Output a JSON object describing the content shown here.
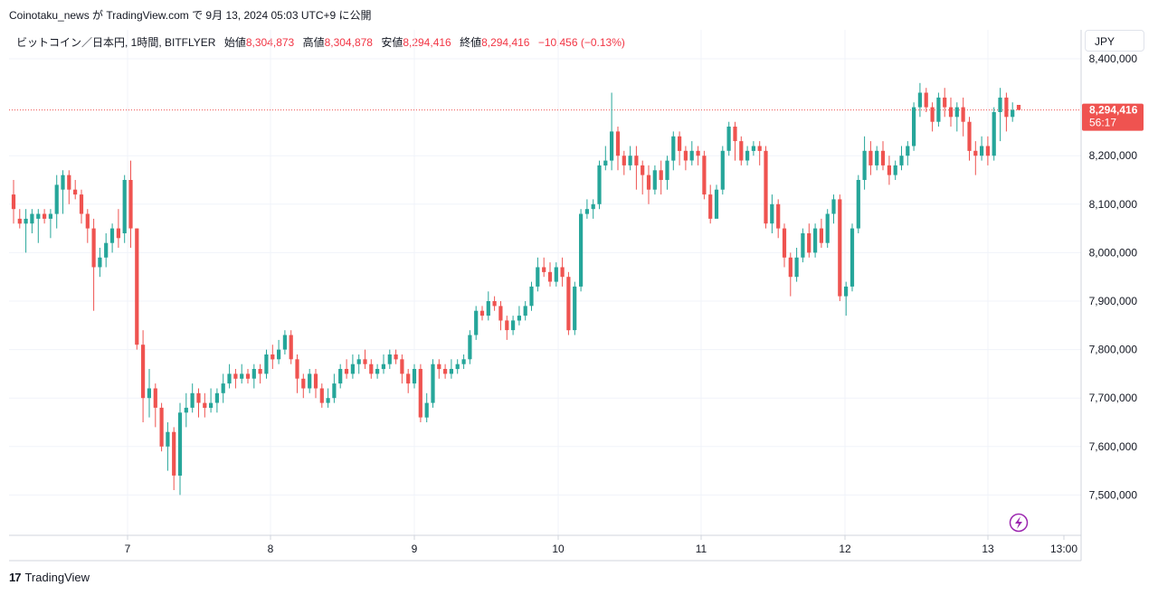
{
  "header": {
    "publish_line": "Coinotaku_news が TradingView.com で 9月 13, 2024 05:03 UTC+9 に公開"
  },
  "legend": {
    "symbol": "ビットコイン／日本円, 1時間, BITFLYER",
    "open_label": "始値",
    "open_value": "8,304,873",
    "high_label": "高値",
    "high_value": "8,304,878",
    "low_label": "安値",
    "low_value": "8,294,416",
    "close_label": "終値",
    "close_value": "8,294,416",
    "change": "−10,456 (−0.13%)"
  },
  "currency_button": "JPY",
  "price_label": {
    "price": "8,294,416",
    "countdown": "56:17"
  },
  "footer": {
    "brand": "TradingView",
    "logo_mark": "17"
  },
  "colors": {
    "up": "#26a69a",
    "down": "#ef5350",
    "grid": "#f0f3fa",
    "price_tag": "#ef5350",
    "axis_text": "#131722",
    "lightning": "#9c27b0"
  },
  "chart_data": {
    "type": "candlestick",
    "y_axis_labels": [
      "8,400,000",
      "8,200,000",
      "8,100,000",
      "8,000,000",
      "7,900,000",
      "7,800,000",
      "7,700,000",
      "7,600,000",
      "7,500,000"
    ],
    "x_axis_labels": [
      "7",
      "8",
      "9",
      "10",
      "11",
      "12",
      "13",
      "13:00"
    ],
    "last_price": 8294416,
    "candles": [
      [
        8120000,
        8090000,
        8150000,
        8060000
      ],
      [
        8070000,
        8060000,
        8090000,
        8050000
      ],
      [
        8060000,
        8070000,
        8090000,
        8000000
      ],
      [
        8060000,
        8080000,
        8090000,
        8040000
      ],
      [
        8070000,
        8080000,
        8090000,
        8020000
      ],
      [
        8080000,
        8070000,
        8090000,
        8060000
      ],
      [
        8070000,
        8080000,
        8090000,
        8030000
      ],
      [
        8080000,
        8140000,
        8160000,
        8050000
      ],
      [
        8130000,
        8160000,
        8170000,
        8080000
      ],
      [
        8160000,
        8130000,
        8170000,
        8100000
      ],
      [
        8130000,
        8120000,
        8150000,
        8110000
      ],
      [
        8120000,
        8080000,
        8130000,
        8060000
      ],
      [
        8080000,
        8050000,
        8090000,
        8020000
      ],
      [
        8050000,
        7970000,
        8070000,
        7880000
      ],
      [
        7970000,
        7990000,
        8010000,
        7950000
      ],
      [
        7990000,
        8020000,
        8040000,
        7970000
      ],
      [
        8020000,
        8050000,
        8060000,
        8000000
      ],
      [
        8050000,
        8030000,
        8090000,
        8010000
      ],
      [
        8040000,
        8150000,
        8160000,
        8020000
      ],
      [
        8150000,
        8050000,
        8190000,
        8010000
      ],
      [
        8050000,
        7810000,
        8050000,
        7800000
      ],
      [
        7810000,
        7700000,
        7840000,
        7650000
      ],
      [
        7700000,
        7720000,
        7760000,
        7660000
      ],
      [
        7720000,
        7680000,
        7730000,
        7640000
      ],
      [
        7680000,
        7600000,
        7690000,
        7590000
      ],
      [
        7600000,
        7630000,
        7650000,
        7550000
      ],
      [
        7630000,
        7540000,
        7640000,
        7510000
      ],
      [
        7540000,
        7670000,
        7690000,
        7500000
      ],
      [
        7670000,
        7680000,
        7710000,
        7640000
      ],
      [
        7680000,
        7710000,
        7730000,
        7670000
      ],
      [
        7710000,
        7690000,
        7720000,
        7660000
      ],
      [
        7690000,
        7680000,
        7710000,
        7660000
      ],
      [
        7680000,
        7690000,
        7720000,
        7670000
      ],
      [
        7690000,
        7710000,
        7720000,
        7670000
      ],
      [
        7710000,
        7730000,
        7750000,
        7690000
      ],
      [
        7730000,
        7750000,
        7770000,
        7720000
      ],
      [
        7750000,
        7740000,
        7760000,
        7720000
      ],
      [
        7740000,
        7750000,
        7770000,
        7730000
      ],
      [
        7750000,
        7740000,
        7760000,
        7730000
      ],
      [
        7740000,
        7760000,
        7770000,
        7720000
      ],
      [
        7760000,
        7750000,
        7770000,
        7730000
      ],
      [
        7750000,
        7790000,
        7800000,
        7740000
      ],
      [
        7790000,
        7780000,
        7810000,
        7760000
      ],
      [
        7780000,
        7800000,
        7820000,
        7770000
      ],
      [
        7800000,
        7830000,
        7840000,
        7790000
      ],
      [
        7830000,
        7780000,
        7840000,
        7770000
      ],
      [
        7780000,
        7740000,
        7790000,
        7710000
      ],
      [
        7740000,
        7720000,
        7750000,
        7700000
      ],
      [
        7720000,
        7750000,
        7760000,
        7710000
      ],
      [
        7750000,
        7720000,
        7760000,
        7700000
      ],
      [
        7720000,
        7690000,
        7730000,
        7680000
      ],
      [
        7690000,
        7700000,
        7720000,
        7680000
      ],
      [
        7700000,
        7730000,
        7750000,
        7690000
      ],
      [
        7730000,
        7760000,
        7770000,
        7720000
      ],
      [
        7760000,
        7750000,
        7780000,
        7740000
      ],
      [
        7750000,
        7770000,
        7790000,
        7740000
      ],
      [
        7770000,
        7780000,
        7790000,
        7750000
      ],
      [
        7780000,
        7770000,
        7800000,
        7760000
      ],
      [
        7770000,
        7750000,
        7780000,
        7740000
      ],
      [
        7750000,
        7760000,
        7770000,
        7740000
      ],
      [
        7760000,
        7770000,
        7790000,
        7750000
      ],
      [
        7770000,
        7790000,
        7800000,
        7760000
      ],
      [
        7790000,
        7780000,
        7800000,
        7770000
      ],
      [
        7780000,
        7750000,
        7790000,
        7730000
      ],
      [
        7750000,
        7730000,
        7760000,
        7710000
      ],
      [
        7730000,
        7760000,
        7770000,
        7720000
      ],
      [
        7760000,
        7660000,
        7770000,
        7650000
      ],
      [
        7660000,
        7690000,
        7710000,
        7650000
      ],
      [
        7690000,
        7770000,
        7780000,
        7680000
      ],
      [
        7770000,
        7760000,
        7780000,
        7740000
      ],
      [
        7760000,
        7750000,
        7770000,
        7740000
      ],
      [
        7750000,
        7760000,
        7780000,
        7740000
      ],
      [
        7760000,
        7770000,
        7780000,
        7750000
      ],
      [
        7770000,
        7780000,
        7790000,
        7760000
      ],
      [
        7780000,
        7830000,
        7840000,
        7770000
      ],
      [
        7830000,
        7880000,
        7890000,
        7820000
      ],
      [
        7880000,
        7870000,
        7890000,
        7860000
      ],
      [
        7870000,
        7900000,
        7920000,
        7860000
      ],
      [
        7900000,
        7890000,
        7910000,
        7880000
      ],
      [
        7890000,
        7860000,
        7900000,
        7840000
      ],
      [
        7860000,
        7840000,
        7870000,
        7820000
      ],
      [
        7840000,
        7860000,
        7870000,
        7830000
      ],
      [
        7860000,
        7870000,
        7890000,
        7850000
      ],
      [
        7870000,
        7890000,
        7900000,
        7860000
      ],
      [
        7890000,
        7930000,
        7940000,
        7880000
      ],
      [
        7930000,
        7970000,
        7990000,
        7920000
      ],
      [
        7970000,
        7960000,
        7990000,
        7950000
      ],
      [
        7960000,
        7940000,
        7980000,
        7930000
      ],
      [
        7940000,
        7970000,
        7980000,
        7930000
      ],
      [
        7970000,
        7950000,
        7990000,
        7930000
      ],
      [
        7950000,
        7840000,
        7960000,
        7830000
      ],
      [
        7840000,
        7930000,
        7940000,
        7830000
      ],
      [
        7930000,
        8080000,
        8090000,
        7920000
      ],
      [
        8080000,
        8090000,
        8110000,
        8070000
      ],
      [
        8090000,
        8100000,
        8110000,
        8070000
      ],
      [
        8100000,
        8180000,
        8190000,
        8090000
      ],
      [
        8180000,
        8190000,
        8220000,
        8170000
      ],
      [
        8190000,
        8250000,
        8330000,
        8170000
      ],
      [
        8250000,
        8200000,
        8260000,
        8170000
      ],
      [
        8200000,
        8180000,
        8210000,
        8160000
      ],
      [
        8180000,
        8200000,
        8220000,
        8170000
      ],
      [
        8200000,
        8180000,
        8220000,
        8130000
      ],
      [
        8180000,
        8160000,
        8190000,
        8120000
      ],
      [
        8160000,
        8130000,
        8180000,
        8100000
      ],
      [
        8130000,
        8170000,
        8180000,
        8120000
      ],
      [
        8170000,
        8150000,
        8190000,
        8120000
      ],
      [
        8150000,
        8190000,
        8200000,
        8130000
      ],
      [
        8190000,
        8240000,
        8250000,
        8170000
      ],
      [
        8240000,
        8210000,
        8250000,
        8180000
      ],
      [
        8210000,
        8190000,
        8220000,
        8170000
      ],
      [
        8190000,
        8210000,
        8230000,
        8180000
      ],
      [
        8210000,
        8200000,
        8220000,
        8180000
      ],
      [
        8200000,
        8120000,
        8210000,
        8110000
      ],
      [
        8120000,
        8070000,
        8140000,
        8060000
      ],
      [
        8070000,
        8130000,
        8140000,
        8080000
      ],
      [
        8130000,
        8210000,
        8220000,
        8120000
      ],
      [
        8210000,
        8260000,
        8270000,
        8200000
      ],
      [
        8260000,
        8230000,
        8270000,
        8190000
      ],
      [
        8230000,
        8190000,
        8240000,
        8180000
      ],
      [
        8190000,
        8210000,
        8220000,
        8180000
      ],
      [
        8210000,
        8220000,
        8230000,
        8200000
      ],
      [
        8220000,
        8210000,
        8230000,
        8180000
      ],
      [
        8210000,
        8060000,
        8220000,
        8050000
      ],
      [
        8060000,
        8100000,
        8120000,
        8040000
      ],
      [
        8100000,
        8050000,
        8110000,
        8030000
      ],
      [
        8050000,
        7990000,
        8060000,
        7970000
      ],
      [
        7990000,
        7950000,
        8000000,
        7910000
      ],
      [
        7950000,
        7990000,
        8010000,
        7940000
      ],
      [
        7990000,
        8040000,
        8050000,
        7980000
      ],
      [
        8040000,
        8000000,
        8060000,
        7990000
      ],
      [
        8000000,
        8050000,
        8060000,
        7990000
      ],
      [
        8050000,
        8020000,
        8070000,
        8010000
      ],
      [
        8020000,
        8080000,
        8090000,
        8010000
      ],
      [
        8080000,
        8110000,
        8120000,
        8060000
      ],
      [
        8110000,
        7910000,
        8120000,
        7900000
      ],
      [
        7910000,
        7930000,
        7940000,
        7870000
      ],
      [
        7930000,
        8050000,
        8060000,
        7920000
      ],
      [
        8050000,
        8150000,
        8160000,
        8040000
      ],
      [
        8150000,
        8210000,
        8240000,
        8130000
      ],
      [
        8210000,
        8180000,
        8230000,
        8160000
      ],
      [
        8180000,
        8210000,
        8220000,
        8170000
      ],
      [
        8210000,
        8180000,
        8230000,
        8170000
      ],
      [
        8180000,
        8160000,
        8200000,
        8140000
      ],
      [
        8160000,
        8180000,
        8190000,
        8150000
      ],
      [
        8180000,
        8200000,
        8220000,
        8170000
      ],
      [
        8200000,
        8220000,
        8230000,
        8180000
      ],
      [
        8220000,
        8300000,
        8310000,
        8210000
      ],
      [
        8300000,
        8330000,
        8350000,
        8280000
      ],
      [
        8330000,
        8300000,
        8340000,
        8290000
      ],
      [
        8300000,
        8270000,
        8310000,
        8250000
      ],
      [
        8270000,
        8320000,
        8330000,
        8260000
      ],
      [
        8320000,
        8300000,
        8340000,
        8280000
      ],
      [
        8300000,
        8280000,
        8320000,
        8260000
      ],
      [
        8280000,
        8300000,
        8310000,
        8250000
      ],
      [
        8300000,
        8270000,
        8320000,
        8240000
      ],
      [
        8270000,
        8210000,
        8280000,
        8190000
      ],
      [
        8210000,
        8200000,
        8230000,
        8160000
      ],
      [
        8200000,
        8220000,
        8240000,
        8190000
      ],
      [
        8220000,
        8200000,
        8240000,
        8180000
      ],
      [
        8200000,
        8290000,
        8300000,
        8190000
      ],
      [
        8290000,
        8320000,
        8340000,
        8230000
      ],
      [
        8320000,
        8280000,
        8330000,
        8250000
      ],
      [
        8280000,
        8294416,
        8310000,
        8270000
      ],
      [
        8304873,
        8294416,
        8304878,
        8294416
      ]
    ]
  }
}
